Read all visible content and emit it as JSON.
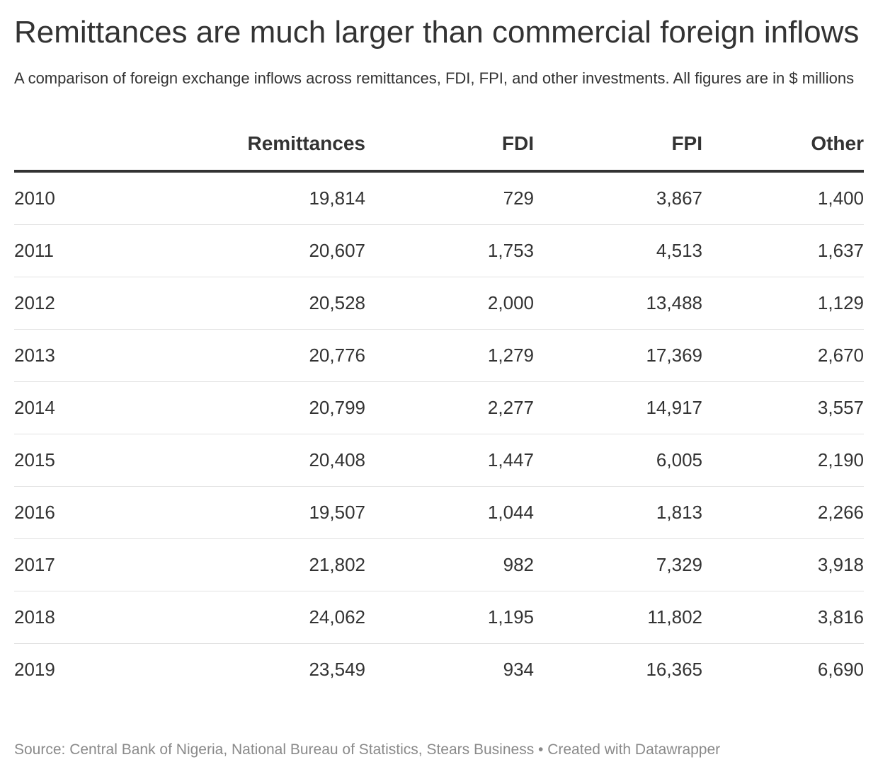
{
  "header": {
    "title": "Remittances are much larger than commercial foreign inflows",
    "subtitle": "A comparison of foreign exchange inflows across remittances, FDI, FPI, and other investments. All figures are in $ millions"
  },
  "footer": {
    "source": "Source: Central Bank of Nigeria, National Bureau of Statistics, Stears Business • Created with Datawrapper"
  },
  "colors": {
    "text": "#333333",
    "muted": "#8a8a8a",
    "row_divider": "#e2e2e2",
    "header_rule": "#333333"
  },
  "chart_data": {
    "type": "table",
    "title": "Remittances are much larger than commercial foreign inflows",
    "subtitle": "A comparison of foreign exchange inflows across remittances, FDI, FPI, and other investments. All figures are in $ millions",
    "columns": [
      "",
      "Remittances",
      "FDI",
      "FPI",
      "Other"
    ],
    "rows": [
      [
        "2010",
        "19,814",
        "729",
        "3,867",
        "1,400"
      ],
      [
        "2011",
        "20,607",
        "1,753",
        "4,513",
        "1,637"
      ],
      [
        "2012",
        "20,528",
        "2,000",
        "13,488",
        "1,129"
      ],
      [
        "2013",
        "20,776",
        "1,279",
        "17,369",
        "2,670"
      ],
      [
        "2014",
        "20,799",
        "2,277",
        "14,917",
        "3,557"
      ],
      [
        "2015",
        "20,408",
        "1,447",
        "6,005",
        "2,190"
      ],
      [
        "2016",
        "19,507",
        "1,044",
        "1,813",
        "2,266"
      ],
      [
        "2017",
        "21,802",
        "982",
        "7,329",
        "3,918"
      ],
      [
        "2018",
        "24,062",
        "1,195",
        "11,802",
        "3,816"
      ],
      [
        "2019",
        "23,549",
        "934",
        "16,365",
        "6,690"
      ]
    ],
    "series": [
      {
        "name": "Remittances",
        "values": [
          19814,
          20607,
          20528,
          20776,
          20799,
          20408,
          19507,
          21802,
          24062,
          23549
        ]
      },
      {
        "name": "FDI",
        "values": [
          729,
          1753,
          2000,
          1279,
          2277,
          1447,
          1044,
          982,
          1195,
          934
        ]
      },
      {
        "name": "FPI",
        "values": [
          3867,
          4513,
          13488,
          17369,
          14917,
          6005,
          1813,
          7329,
          11802,
          16365
        ]
      },
      {
        "name": "Other",
        "values": [
          1400,
          1637,
          1129,
          2670,
          3557,
          2190,
          2266,
          3918,
          3816,
          6690
        ]
      }
    ],
    "categories": [
      "2010",
      "2011",
      "2012",
      "2013",
      "2014",
      "2015",
      "2016",
      "2017",
      "2018",
      "2019"
    ]
  }
}
